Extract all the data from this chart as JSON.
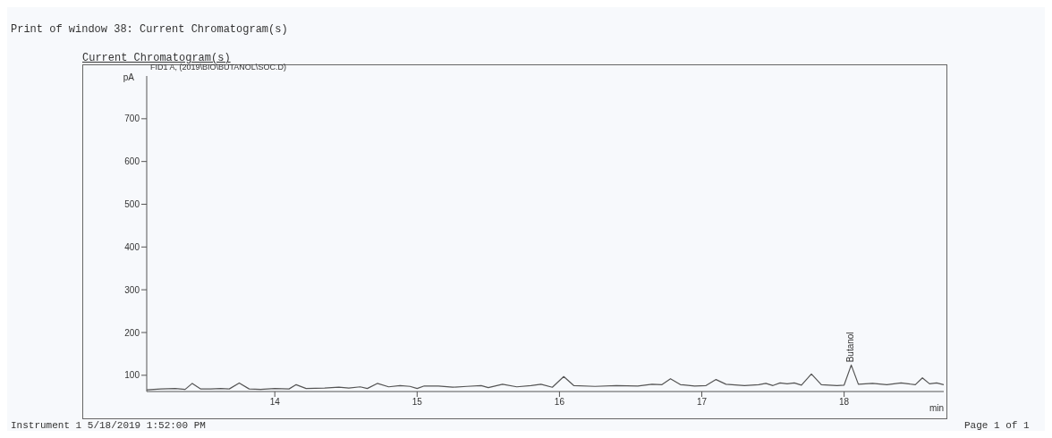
{
  "chart_data": {
    "type": "line",
    "title": "Print of window 38: Current Chromatogram(s)",
    "subtitle": "Current Chromatogram(s)",
    "xlabel": "min",
    "ylabel": "pA",
    "annotations": [
      "FID1 A, (2019\\BIO\\BUTANOL\\SOC.D)",
      "Instrument 1 5/18/2019 1:52:00 PM",
      "Page 1 of 1",
      {
        "text": "Butanol",
        "x": 18.05,
        "y": 124
      }
    ],
    "xlim": [
      13.1,
      18.7
    ],
    "xticks": [
      14,
      15,
      16,
      17,
      18
    ],
    "ylim": [
      62,
      800
    ],
    "yticks": [
      100,
      200,
      300,
      400,
      500,
      600,
      700
    ],
    "grid": false,
    "legend": false,
    "marker": "none",
    "line_style": "solid",
    "series": [
      {
        "color": "#555555",
        "x": [
          13.1,
          13.2,
          13.3,
          13.37,
          13.42,
          13.48,
          13.55,
          13.62,
          13.68,
          13.75,
          13.82,
          13.9,
          14.0,
          14.1,
          14.15,
          14.22,
          14.35,
          14.45,
          14.52,
          14.6,
          14.65,
          14.72,
          14.8,
          14.88,
          14.95,
          15.0,
          15.05,
          15.15,
          15.25,
          15.35,
          15.45,
          15.5,
          15.6,
          15.7,
          15.8,
          15.87,
          15.95,
          16.03,
          16.1,
          16.25,
          16.4,
          16.55,
          16.65,
          16.72,
          16.78,
          16.85,
          16.95,
          17.03,
          17.1,
          17.17,
          17.3,
          17.4,
          17.45,
          17.5,
          17.55,
          17.6,
          17.65,
          17.7,
          17.77,
          17.84,
          17.95,
          18.0,
          18.05,
          18.1,
          18.2,
          18.3,
          18.4,
          18.45,
          18.5,
          18.55,
          18.6,
          18.65,
          18.7
        ],
        "values": [
          66,
          68,
          69,
          67,
          81,
          68,
          68,
          69,
          68,
          82,
          68,
          67,
          69,
          68,
          78,
          69,
          70,
          72,
          70,
          73,
          69,
          81,
          73,
          76,
          74,
          69,
          75,
          75,
          72,
          74,
          76,
          71,
          79,
          73,
          76,
          79,
          72,
          97,
          76,
          74,
          76,
          75,
          79,
          78,
          92,
          78,
          75,
          76,
          90,
          79,
          76,
          78,
          81,
          76,
          82,
          80,
          82,
          77,
          103,
          78,
          76,
          77,
          124,
          79,
          81,
          78,
          82,
          80,
          78,
          94,
          80,
          82,
          78
        ]
      }
    ]
  }
}
